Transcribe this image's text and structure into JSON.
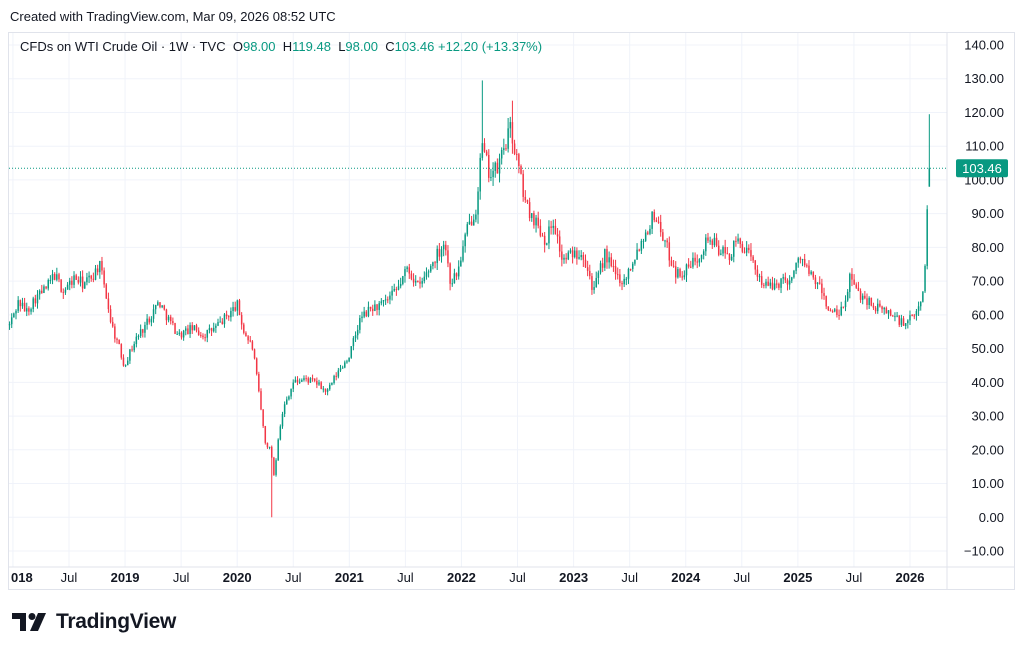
{
  "header": {
    "created": "Created with TradingView.com, Mar 09, 2026 08:52 UTC"
  },
  "legend": {
    "symbol": "CFDs on WTI Crude Oil · 1W · TVC",
    "o_label": "O",
    "o_value": "98.00",
    "h_label": "H",
    "h_value": "119.48",
    "l_label": "L",
    "l_value": "98.00",
    "c_label": "C",
    "c_value": "103.46",
    "change": "+12.20 (+13.37%)"
  },
  "footer": {
    "brand": "TradingView"
  },
  "colors": {
    "up": "#089981",
    "down": "#f23645",
    "axis_text": "#131722",
    "grid": "#f0f3fa"
  },
  "chart_data": {
    "type": "candlestick",
    "title": "CFDs on WTI Crude Oil · 1W · TVC",
    "ylim": [
      -14,
      144
    ],
    "y_ticks": [
      140,
      130,
      120,
      110,
      100,
      90,
      80,
      70,
      60,
      50,
      40,
      30,
      20,
      10,
      0,
      -10
    ],
    "y_tick_labels": [
      "140.00",
      "130.00",
      "120.00",
      "110.00",
      "100.00",
      "90.00",
      "80.00",
      "70.00",
      "60.00",
      "50.00",
      "40.00",
      "30.00",
      "20.00",
      "10.00",
      "0.00",
      "−10.00"
    ],
    "xlim": [
      2017.965,
      2026.33
    ],
    "x_ticks": [
      {
        "t": 2018.0,
        "label": "018",
        "bold": true
      },
      {
        "t": 2018.5,
        "label": "Jul",
        "bold": false
      },
      {
        "t": 2019.0,
        "label": "2019",
        "bold": true
      },
      {
        "t": 2019.5,
        "label": "Jul",
        "bold": false
      },
      {
        "t": 2020.0,
        "label": "2020",
        "bold": true
      },
      {
        "t": 2020.5,
        "label": "Jul",
        "bold": false
      },
      {
        "t": 2021.0,
        "label": "2021",
        "bold": true
      },
      {
        "t": 2021.5,
        "label": "Jul",
        "bold": false
      },
      {
        "t": 2022.0,
        "label": "2022",
        "bold": true
      },
      {
        "t": 2022.5,
        "label": "Jul",
        "bold": false
      },
      {
        "t": 2023.0,
        "label": "2023",
        "bold": true
      },
      {
        "t": 2023.5,
        "label": "Jul",
        "bold": false
      },
      {
        "t": 2024.0,
        "label": "2024",
        "bold": true
      },
      {
        "t": 2024.5,
        "label": "Jul",
        "bold": false
      },
      {
        "t": 2025.0,
        "label": "2025",
        "bold": true
      },
      {
        "t": 2025.5,
        "label": "Jul",
        "bold": false
      },
      {
        "t": 2026.0,
        "label": "2026",
        "bold": true
      }
    ],
    "anchors": [
      [
        2017.97,
        57
      ],
      [
        2018.05,
        64
      ],
      [
        2018.12,
        61
      ],
      [
        2018.2,
        65
      ],
      [
        2018.3,
        68
      ],
      [
        2018.37,
        72
      ],
      [
        2018.45,
        67
      ],
      [
        2018.55,
        71
      ],
      [
        2018.63,
        69
      ],
      [
        2018.72,
        72
      ],
      [
        2018.77,
        75
      ],
      [
        2018.82,
        68
      ],
      [
        2018.88,
        57
      ],
      [
        2018.95,
        50
      ],
      [
        2018.99,
        45
      ],
      [
        2019.1,
        53
      ],
      [
        2019.18,
        57
      ],
      [
        2019.3,
        64
      ],
      [
        2019.4,
        58
      ],
      [
        2019.48,
        54
      ],
      [
        2019.6,
        56
      ],
      [
        2019.7,
        54
      ],
      [
        2019.8,
        56
      ],
      [
        2019.92,
        60
      ],
      [
        2020.0,
        63
      ],
      [
        2020.06,
        55
      ],
      [
        2020.14,
        50
      ],
      [
        2020.2,
        35
      ],
      [
        2020.25,
        22
      ],
      [
        2020.3,
        20
      ],
      [
        2020.33,
        12
      ],
      [
        2020.37,
        25
      ],
      [
        2020.42,
        33
      ],
      [
        2020.5,
        40
      ],
      [
        2020.6,
        41
      ],
      [
        2020.7,
        40
      ],
      [
        2020.8,
        37
      ],
      [
        2020.88,
        42
      ],
      [
        2021.0,
        48
      ],
      [
        2021.1,
        59
      ],
      [
        2021.2,
        62
      ],
      [
        2021.3,
        63
      ],
      [
        2021.42,
        67
      ],
      [
        2021.52,
        74
      ],
      [
        2021.62,
        68
      ],
      [
        2021.75,
        76
      ],
      [
        2021.85,
        82
      ],
      [
        2021.9,
        70
      ],
      [
        2021.96,
        72
      ],
      [
        2022.05,
        85
      ],
      [
        2022.13,
        92
      ],
      [
        2022.18,
        110
      ],
      [
        2022.25,
        102
      ],
      [
        2022.32,
        103
      ],
      [
        2022.38,
        110
      ],
      [
        2022.44,
        115
      ],
      [
        2022.5,
        105
      ],
      [
        2022.58,
        92
      ],
      [
        2022.66,
        88
      ],
      [
        2022.75,
        82
      ],
      [
        2022.82,
        88
      ],
      [
        2022.9,
        76
      ],
      [
        2022.98,
        78
      ],
      [
        2023.08,
        79
      ],
      [
        2023.18,
        67
      ],
      [
        2023.28,
        78
      ],
      [
        2023.37,
        72
      ],
      [
        2023.45,
        70
      ],
      [
        2023.55,
        78
      ],
      [
        2023.65,
        85
      ],
      [
        2023.72,
        90
      ],
      [
        2023.78,
        85
      ],
      [
        2023.85,
        78
      ],
      [
        2023.92,
        72
      ],
      [
        2024.0,
        73
      ],
      [
        2024.1,
        77
      ],
      [
        2024.2,
        83
      ],
      [
        2024.28,
        80
      ],
      [
        2024.38,
        77
      ],
      [
        2024.46,
        82
      ],
      [
        2024.52,
        80
      ],
      [
        2024.6,
        75
      ],
      [
        2024.68,
        70
      ],
      [
        2024.75,
        68
      ],
      [
        2024.85,
        70
      ],
      [
        2024.95,
        71
      ],
      [
        2025.02,
        78
      ],
      [
        2025.1,
        72
      ],
      [
        2025.2,
        68
      ],
      [
        2025.28,
        61
      ],
      [
        2025.35,
        60
      ],
      [
        2025.42,
        62
      ],
      [
        2025.46,
        72
      ],
      [
        2025.52,
        67
      ],
      [
        2025.6,
        65
      ],
      [
        2025.7,
        62
      ],
      [
        2025.8,
        61
      ],
      [
        2025.88,
        59
      ],
      [
        2025.95,
        57
      ],
      [
        2026.05,
        60
      ],
      [
        2026.1,
        65
      ],
      [
        2026.13,
        67
      ]
    ],
    "last_candles": [
      {
        "o": 67.0,
        "h": 75.0,
        "l": 66.5,
        "c": 74.5
      },
      {
        "o": 74.5,
        "h": 92.5,
        "l": 73.5,
        "c": 91.3
      },
      {
        "o": 98.0,
        "h": 119.48,
        "l": 98.0,
        "c": 103.46
      }
    ],
    "price_line": 103.46,
    "price_label": "103.46",
    "extremes": [
      {
        "t": 2020.31,
        "l": 0.0,
        "note": "2020 low"
      },
      {
        "t": 2022.18,
        "h": 129.5,
        "note": "2022 spike"
      },
      {
        "t": 2022.45,
        "h": 123.5,
        "note": "mid-2022 high"
      }
    ]
  }
}
